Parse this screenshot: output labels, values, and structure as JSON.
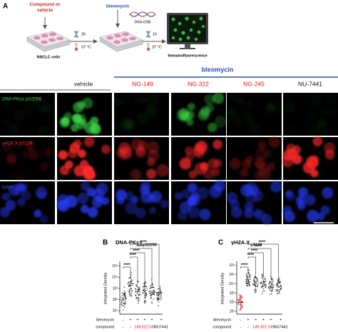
{
  "panel_a": {
    "label": "A",
    "compound_step": "Compound or vehicle",
    "bleomycin_step": "bleomycin",
    "dsb": "DNA-DSB",
    "time1": "2h",
    "temp1": "37 °C",
    "time2": "1h",
    "temp2": "37 °C",
    "cells": "NSCLC cells",
    "readout": "Immunofluorescence"
  },
  "images": {
    "treatment": "bleomycin",
    "columns": [
      "vehicle",
      "NG-149",
      "NG-322",
      "NG-245",
      "NU-7441"
    ],
    "rows": [
      "DNA-PKcs pS2056",
      "γH2A.X pS139",
      "DAPI"
    ]
  },
  "chart_data": [
    {
      "type": "dotplot",
      "label": "B",
      "title": "DNA-PKcs",
      "title_sub": "pS2056",
      "ylabel": "Integrated Density",
      "log": true,
      "ylim": [
        5,
        200000
      ],
      "yticks": [
        {
          "value": 10,
          "label": "10¹"
        },
        {
          "value": 100,
          "label": "10²"
        },
        {
          "value": 1000,
          "label": "10³"
        },
        {
          "value": 10000,
          "label": "10⁴"
        },
        {
          "value": 100000,
          "label": "10⁵"
        }
      ],
      "values": [
        100,
        2000,
        500,
        600,
        500,
        300
      ],
      "colors": [
        "#222",
        "#222",
        "#222",
        "#222",
        "#222",
        "#222"
      ],
      "rows": [
        {
          "name": "bleomycin",
          "labels": [
            "-",
            "+",
            "+",
            "+",
            "+",
            "+"
          ]
        },
        {
          "name": "compound",
          "labels": [
            "-",
            "-",
            "149",
            "322",
            "245",
            "NU7441"
          ]
        }
      ],
      "significance": [
        "****",
        "****",
        "****",
        "****",
        "****"
      ]
    },
    {
      "type": "dotplot",
      "label": "C",
      "title": "γH2A.X",
      "title_sub": "pS139",
      "ylabel": "Integrated Density",
      "log": true,
      "ylim": [
        5,
        2000000
      ],
      "yticks": [
        {
          "value": 10,
          "label": "10¹"
        },
        {
          "value": 100,
          "label": "10²"
        },
        {
          "value": 1000,
          "label": "10³"
        },
        {
          "value": 10000,
          "label": "10⁴"
        },
        {
          "value": 100000,
          "label": "10⁵"
        },
        {
          "value": 1000000,
          "label": "10⁶"
        }
      ],
      "values": [
        100,
        30000,
        10000,
        10000,
        8000,
        5000
      ],
      "colors": [
        "#d62728",
        "#222",
        "#222",
        "#222",
        "#222",
        "#222"
      ],
      "rows": [
        {
          "name": "bleomycin",
          "labels": [
            "-",
            "+",
            "+",
            "+",
            "+",
            "+"
          ]
        },
        {
          "name": "compound",
          "labels": [
            "-",
            "-",
            "149",
            "322",
            "245",
            "NU7441"
          ]
        }
      ],
      "significance": [
        "****",
        "****",
        "****",
        "****",
        "****"
      ]
    }
  ]
}
